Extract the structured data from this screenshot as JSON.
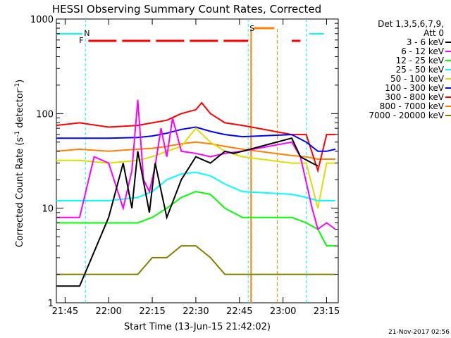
{
  "chart_data": {
    "type": "line",
    "title": "HESSI Observing Summary Count Rates, Corrected",
    "xlabel": "Start Time (13-Jun-15 21:42:02)",
    "ylabel_main": "Corrected Count Rate (s",
    "ylabel_sup1": "-1",
    "ylabel_mid": " detector",
    "ylabel_sup2": "-1",
    "ylabel_end": ")",
    "yscale": "log",
    "ylim": [
      1,
      1000
    ],
    "xlim": [
      "21:42",
      "23:19"
    ],
    "xtick_labels": [
      "21:45",
      "22:00",
      "22:15",
      "22:30",
      "22:45",
      "23:00",
      "23:15"
    ],
    "ytick_labels": [
      "1",
      "10",
      "100",
      "1000"
    ],
    "legend_header": [
      "Det 1,3,5,6,7,9,",
      "Att 0"
    ],
    "legend_placement": "right",
    "footer_date": "21-Nov-2017 02:56",
    "series": [
      {
        "name": "3 - 6 keV",
        "color": "#000000",
        "x": [
          "21:42",
          "21:50",
          "22:00",
          "22:05",
          "22:08",
          "22:10",
          "22:14",
          "22:16",
          "22:20",
          "22:25",
          "22:30",
          "22:35",
          "22:40",
          "22:43",
          "22:46",
          "23:03",
          "23:06",
          "23:10",
          "23:12"
        ],
        "values": [
          1.5,
          1.5,
          8,
          30,
          10,
          40,
          9,
          30,
          8,
          20,
          35,
          30,
          40,
          38,
          40,
          55,
          35,
          30,
          28
        ]
      },
      {
        "name": "6 - 12 keV",
        "color": "#ff00ff",
        "x": [
          "21:42",
          "21:50",
          "21:55",
          "22:00",
          "22:05",
          "22:08",
          "22:10",
          "22:12",
          "22:14",
          "22:16",
          "22:18",
          "22:20",
          "22:22",
          "22:25",
          "22:30",
          "22:35",
          "22:40",
          "22:46",
          "23:03",
          "23:06",
          "23:10",
          "23:12",
          "23:15",
          "23:18"
        ],
        "values": [
          8,
          8,
          35,
          30,
          10,
          25,
          140,
          20,
          15,
          28,
          70,
          35,
          90,
          40,
          38,
          35,
          38,
          40,
          50,
          35,
          10,
          6,
          7,
          6
        ]
      },
      {
        "name": "12 - 25 keV",
        "color": "#00ff00",
        "x": [
          "21:42",
          "21:50",
          "22:00",
          "22:10",
          "22:15",
          "22:20",
          "22:25",
          "22:30",
          "22:35",
          "22:40",
          "22:46",
          "23:03",
          "23:08",
          "23:12",
          "23:15",
          "23:18"
        ],
        "values": [
          7,
          7,
          7,
          7,
          8,
          10,
          13,
          15,
          14,
          10,
          8,
          8,
          7,
          6,
          4,
          4
        ]
      },
      {
        "name": "25 - 50 keV",
        "color": "#00ffff",
        "x": [
          "21:42",
          "21:50",
          "22:00",
          "22:10",
          "22:15",
          "22:20",
          "22:25",
          "22:30",
          "22:35",
          "22:40",
          "22:46",
          "23:03",
          "23:08",
          "23:12",
          "23:15",
          "23:18"
        ],
        "values": [
          12,
          12,
          12,
          13,
          15,
          20,
          23,
          24,
          22,
          18,
          15,
          14,
          13,
          12,
          12,
          12
        ]
      },
      {
        "name": "50 - 100 keV",
        "color": "#dddd00",
        "x": [
          "21:42",
          "21:50",
          "22:00",
          "22:10",
          "22:15",
          "22:20",
          "22:25",
          "22:30",
          "22:35",
          "22:40",
          "22:46",
          "23:03",
          "23:08",
          "23:12",
          "23:15",
          "23:18"
        ],
        "values": [
          32,
          32,
          30,
          32,
          35,
          40,
          45,
          70,
          50,
          40,
          35,
          30,
          30,
          10,
          30,
          30
        ]
      },
      {
        "name": "100 - 300 keV",
        "color": "#0000ff",
        "x": [
          "21:42",
          "21:50",
          "22:00",
          "22:10",
          "22:15",
          "22:20",
          "22:25",
          "22:30",
          "22:35",
          "22:40",
          "22:46",
          "23:03",
          "23:08",
          "23:12",
          "23:15",
          "23:18"
        ],
        "values": [
          55,
          55,
          55,
          56,
          58,
          62,
          68,
          72,
          65,
          60,
          57,
          60,
          50,
          40,
          40,
          42
        ]
      },
      {
        "name": "300 - 800 keV",
        "color": "#ff0000",
        "x": [
          "21:42",
          "21:50",
          "22:00",
          "22:10",
          "22:15",
          "22:20",
          "22:25",
          "22:30",
          "22:32",
          "22:35",
          "22:40",
          "22:46",
          "23:03",
          "23:08",
          "23:12",
          "23:15",
          "23:18"
        ],
        "values": [
          75,
          80,
          72,
          75,
          80,
          85,
          100,
          110,
          130,
          100,
          80,
          75,
          60,
          60,
          25,
          60,
          60
        ]
      },
      {
        "name": "800 - 7000 keV",
        "color": "#ff8000",
        "x": [
          "21:42",
          "21:50",
          "22:00",
          "22:10",
          "22:15",
          "22:20",
          "22:25",
          "22:30",
          "22:35",
          "22:40",
          "22:46",
          "23:03",
          "23:08",
          "23:12",
          "23:15",
          "23:18"
        ],
        "values": [
          40,
          42,
          40,
          42,
          43,
          45,
          48,
          50,
          48,
          45,
          42,
          36,
          35,
          33,
          33,
          33
        ]
      },
      {
        "name": "7000 - 20000 keV",
        "color": "#808000",
        "x": [
          "21:42",
          "21:50",
          "22:00",
          "22:10",
          "22:15",
          "22:20",
          "22:25",
          "22:30",
          "22:35",
          "22:40",
          "22:46",
          "23:03",
          "23:08",
          "23:12",
          "23:15",
          "23:18"
        ],
        "values": [
          2,
          2,
          2,
          2,
          3,
          3,
          4,
          4,
          3,
          2,
          2,
          2,
          2,
          2,
          2,
          2
        ]
      }
    ],
    "annotations": [
      {
        "label": "N",
        "color": "#00ffff",
        "x": "21:52"
      },
      {
        "label": "F",
        "color": "#ff0000",
        "x": "21:52"
      },
      {
        "label": "S",
        "color": "#ff8000",
        "x": "22:49"
      }
    ],
    "colors": {
      "eclipse": "#00ffff",
      "flare": "#ff0000",
      "saa": "#ff8000"
    }
  }
}
